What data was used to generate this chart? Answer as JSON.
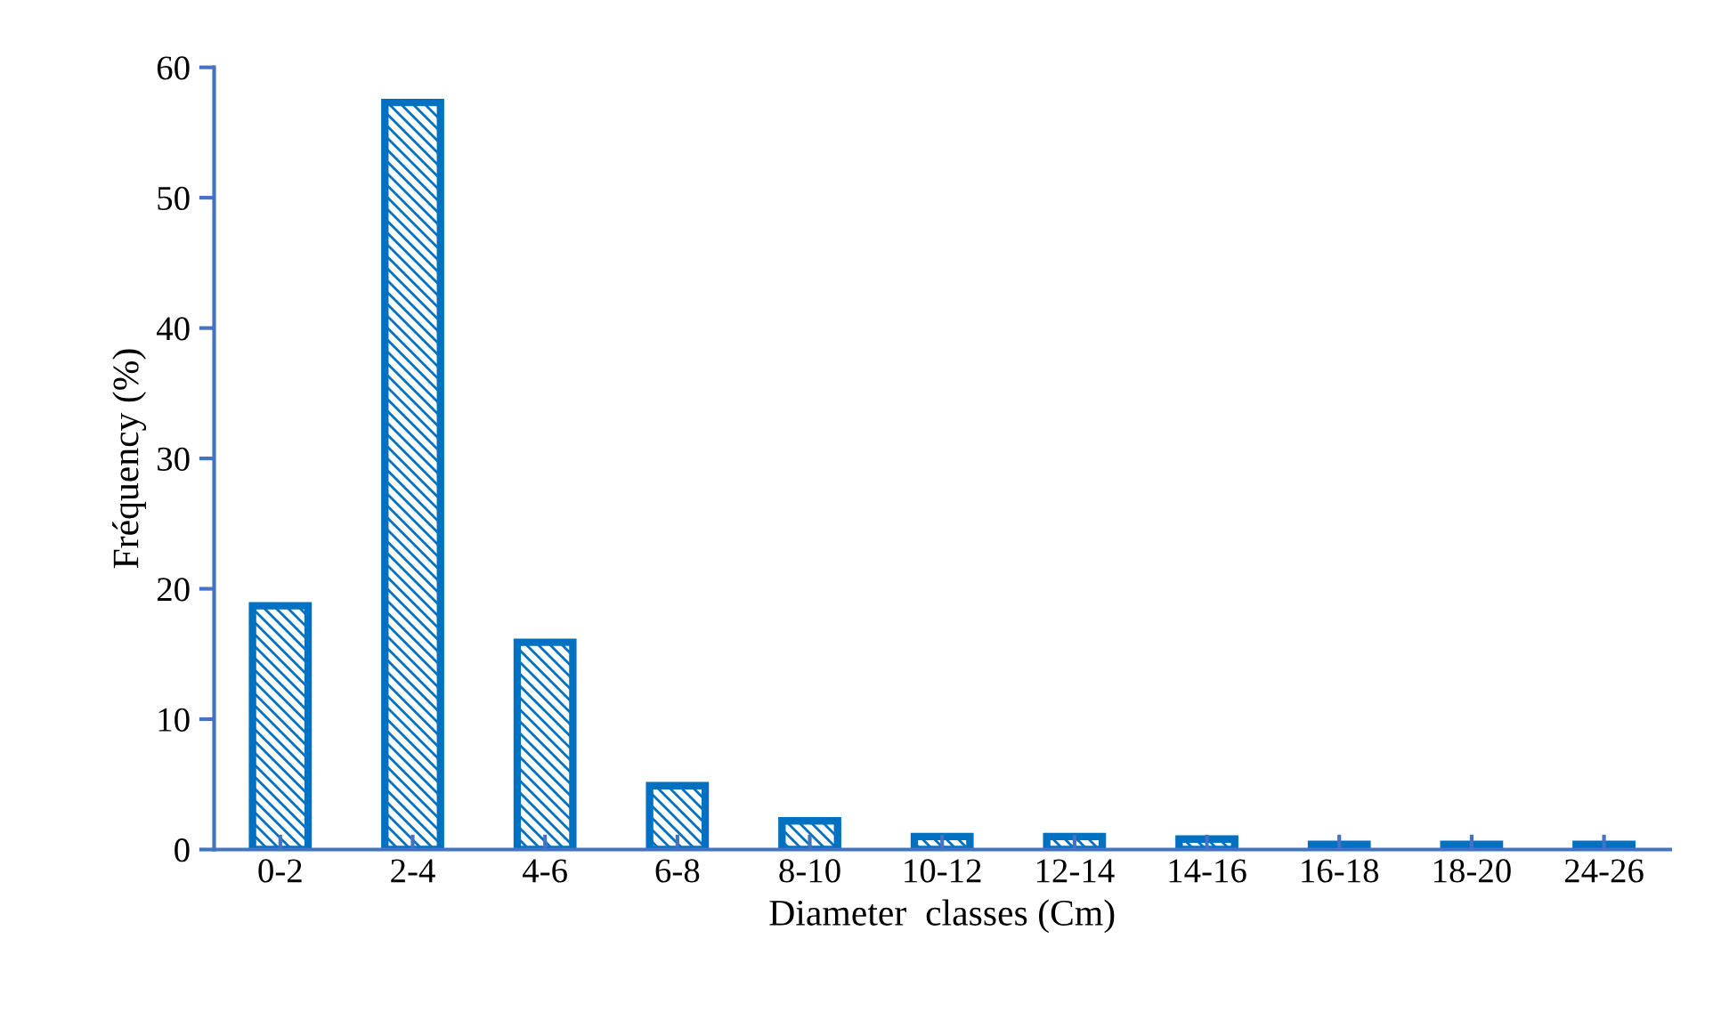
{
  "chart_data": {
    "type": "bar",
    "xlabel": "Diameter  classes (Cm)",
    "ylabel": "Fréquency (%)",
    "categories": [
      "0-2",
      "2-4",
      "4-6",
      "6-8",
      "8-10",
      "10-12",
      "12-14",
      "14-16",
      "16-18",
      "18-20",
      "24-26"
    ],
    "values": [
      18.7,
      57.3,
      15.9,
      4.9,
      2.2,
      1.0,
      1.0,
      0.8,
      0.4,
      0.4,
      0.4
    ],
    "color": "#0070c0",
    "ylim": [
      0,
      60
    ],
    "yticks": [
      0,
      10,
      20,
      30,
      40,
      50,
      60
    ],
    "grid": false,
    "legend": false
  }
}
